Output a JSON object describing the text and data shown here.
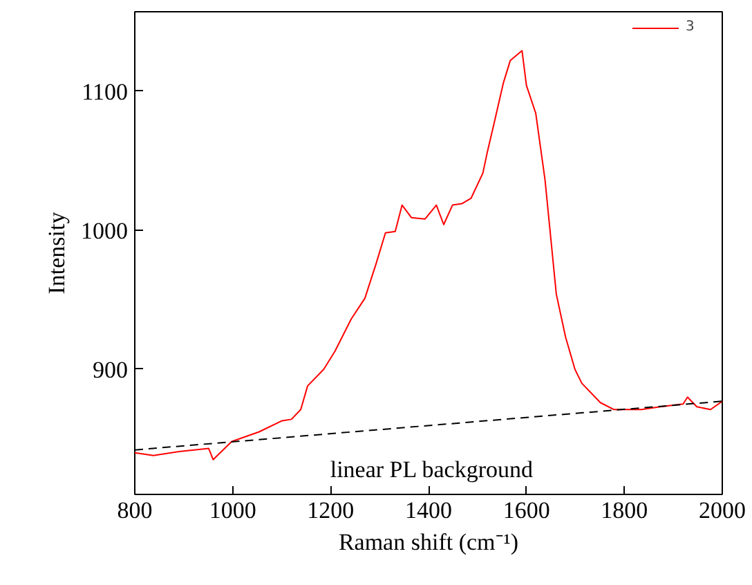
{
  "chart_data": {
    "type": "line",
    "xlabel": "Raman shift (cm⁻¹)",
    "ylabel": "Intensity",
    "xlim": [
      800,
      2000
    ],
    "ylim": [
      810,
      1157
    ],
    "xticks": [
      800,
      1000,
      1200,
      1400,
      1600,
      1800,
      2000
    ],
    "yticks": [
      900,
      1000,
      1100
    ],
    "grid": false,
    "legend": "top right",
    "marker": "none",
    "series": [
      {
        "name": "3",
        "color": "#ff0000",
        "line_style": "solid",
        "x": [
          800,
          838,
          894,
          951,
          960,
          998,
          1054,
          1101,
          1120,
          1139,
          1153,
          1186,
          1209,
          1242,
          1270,
          1293,
          1312,
          1332,
          1346,
          1365,
          1393,
          1416,
          1431,
          1449,
          1468,
          1487,
          1511,
          1520,
          1534,
          1553,
          1567,
          1591,
          1600,
          1619,
          1638,
          1661,
          1680,
          1699,
          1713,
          1751,
          1779,
          1835,
          1873,
          1920,
          1929,
          1948,
          1976,
          2000
        ],
        "values": [
          840,
          838,
          841,
          843,
          835,
          848,
          855,
          863,
          864,
          871,
          888,
          900,
          913,
          936,
          951,
          976,
          998,
          999,
          1018,
          1009,
          1008,
          1018,
          1004,
          1018,
          1019,
          1023,
          1041,
          1056,
          1077,
          1106,
          1122,
          1129,
          1104,
          1084,
          1036,
          954,
          923,
          900,
          890,
          876,
          871,
          871,
          873,
          875,
          880,
          873,
          871,
          877
        ]
      },
      {
        "color": "#000000",
        "line_style": "dashed",
        "x": [
          800,
          2000
        ],
        "values": [
          842,
          877
        ]
      }
    ],
    "annotations": [
      "linear PL background"
    ]
  }
}
